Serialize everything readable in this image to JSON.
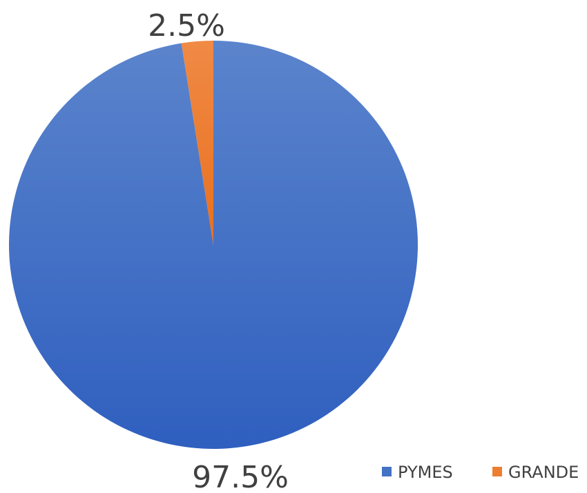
{
  "chart_data": {
    "type": "pie",
    "categories": [
      "PYMES",
      "GRANDE"
    ],
    "values": [
      97.5,
      2.5
    ],
    "data_labels": [
      "97.5%",
      "2.5%"
    ],
    "colors": [
      "#4472C4",
      "#ED7D31"
    ],
    "legend": {
      "position": "bottom-right",
      "entries": [
        "PYMES",
        "GRANDE"
      ]
    }
  }
}
